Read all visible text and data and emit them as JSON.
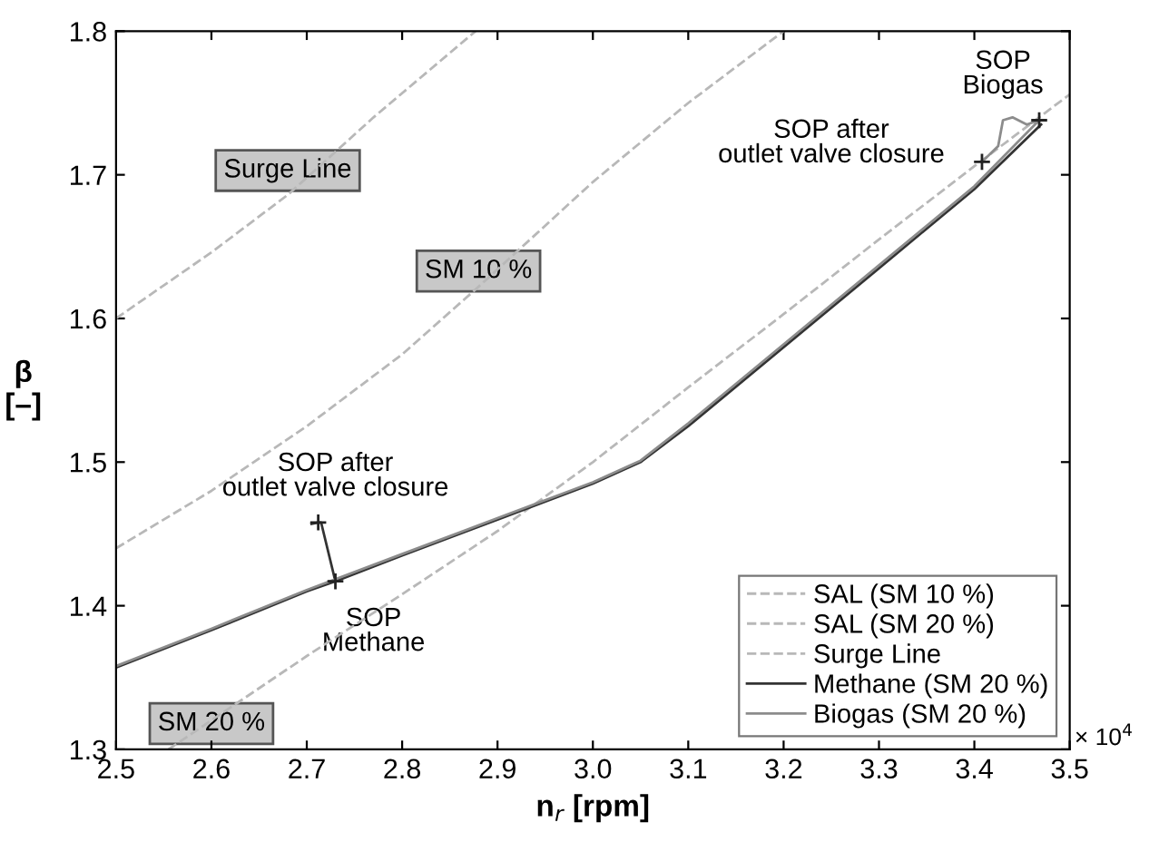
{
  "chart_data": {
    "type": "line",
    "xlabel": "n$_{r}$ [rpm]",
    "ylabel": "β\n[–]",
    "xlim": [
      2.5,
      3.5
    ],
    "ylim": [
      1.3,
      1.8
    ],
    "xticks": [
      2.5,
      2.6,
      2.7,
      2.8,
      2.9,
      {
        "value": 3.0,
        "label": "3.0"
      },
      3.1,
      3.2,
      3.3,
      3.4,
      3.5
    ],
    "yticks": [
      1.3,
      1.4,
      1.5,
      1.6,
      1.7,
      1.8
    ],
    "grid": false,
    "legend": "bottom right",
    "marker": "none",
    "series": [
      {
        "name": "SAL (SM 10 %)",
        "color": "#b8b8b8",
        "line_style": "dashed",
        "x": [
          2.5,
          2.6,
          2.7,
          2.8,
          2.88,
          3.0,
          3.1,
          3.2
        ],
        "values": [
          1.44,
          1.48,
          1.525,
          1.575,
          1.622,
          1.695,
          1.75,
          1.8
        ]
      },
      {
        "name": "SAL (SM 20 %)",
        "color": "#b8b8b8",
        "line_style": "dashed",
        "x": [
          2.555,
          2.7,
          2.8,
          2.9,
          3.0,
          3.1,
          3.2,
          3.3,
          3.4,
          3.5
        ],
        "values": [
          1.3,
          1.365,
          1.408,
          1.452,
          1.5,
          1.552,
          1.603,
          1.655,
          1.706,
          1.756
        ]
      },
      {
        "name": "Surge Line",
        "color": "#b8b8b8",
        "line_style": "dashed",
        "x": [
          2.5,
          2.6,
          2.68,
          2.77,
          2.877
        ],
        "values": [
          1.6,
          1.646,
          1.686,
          1.74,
          1.8
        ]
      },
      {
        "name": "Methane (SM 20 %)",
        "color": "#333333",
        "line_style": "solid",
        "x": [
          2.5,
          2.6,
          2.7,
          2.73,
          2.8,
          2.9,
          3.0,
          3.05,
          3.1,
          3.2,
          3.3,
          3.4,
          3.47
        ],
        "values": [
          1.357,
          1.383,
          1.41,
          1.417,
          1.435,
          1.46,
          1.485,
          1.5,
          1.525,
          1.58,
          1.635,
          1.69,
          1.735
        ]
      },
      {
        "color": "#333333",
        "line_style": "solid",
        "x": [
          2.73,
          2.715,
          2.712,
          2.705
        ],
        "values": [
          1.417,
          1.458,
          1.458,
          1.457
        ]
      },
      {
        "name": "Biogas (SM 20 %)",
        "color": "#8c8c8c",
        "line_style": "solid",
        "x": [
          2.5,
          2.6,
          2.7,
          2.8,
          2.9,
          3.0,
          3.05,
          3.1,
          3.2,
          3.3,
          3.4,
          3.468,
          3.455,
          3.44,
          3.43,
          3.425,
          3.408
        ],
        "values": [
          1.358,
          1.384,
          1.411,
          1.436,
          1.461,
          1.486,
          1.501,
          1.527,
          1.582,
          1.637,
          1.692,
          1.738,
          1.735,
          1.74,
          1.738,
          1.72,
          1.709
        ]
      },
      {
        "type": "scatter",
        "marker": "cross",
        "color": "#222222",
        "x": [
          2.73,
          2.712,
          3.468,
          3.408
        ],
        "values": [
          1.417,
          1.458,
          1.738,
          1.709
        ]
      }
    ],
    "annotations": [
      "Surge Line",
      "SM 10 %",
      "SM 20 %",
      "SOP after\noutlet valve closure",
      "SOP\nMethane",
      "SOP after\noutlet valve closure",
      "SOP\nBiogas",
      "× 10$^{4}$"
    ]
  }
}
